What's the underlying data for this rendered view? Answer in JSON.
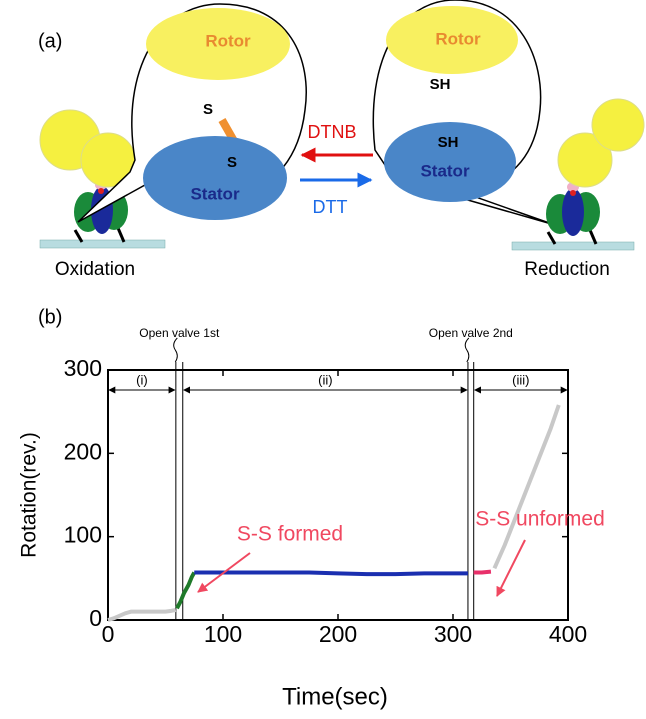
{
  "panel_a": {
    "label": "(a)",
    "left_bubble": {
      "rotor": "Rotor",
      "rotor_thiol": "S",
      "stator_thiol": "S",
      "stator": "Stator"
    },
    "right_bubble": {
      "rotor": "Rotor",
      "rotor_thiol": "SH",
      "stator_thiol": "SH",
      "stator": "Stator"
    },
    "reagents": {
      "forward": "DTNB",
      "backward": "DTT"
    },
    "states": {
      "left": "Oxidation",
      "right": "Reduction"
    }
  },
  "chart_data": {
    "type": "line",
    "panel_label": "(b)",
    "x_label": "Time(sec)",
    "y_label": "Rotation(rev.)",
    "xlim": [
      0,
      400
    ],
    "ylim": [
      0,
      300
    ],
    "xticks": [
      0,
      100,
      200,
      300,
      400
    ],
    "yticks": [
      0,
      100,
      200,
      300
    ],
    "series": [
      {
        "color": "#c8c8c8",
        "x": [
          0,
          5,
          10,
          15,
          20,
          30,
          40,
          50,
          55,
          59
        ],
        "values": [
          0,
          2,
          5,
          8,
          10,
          10,
          10,
          10,
          11,
          12
        ]
      },
      {
        "color": "#1f7a2a",
        "x": [
          60,
          63,
          66,
          70,
          73,
          75
        ],
        "values": [
          14,
          22,
          32,
          42,
          52,
          57
        ]
      },
      {
        "color": "#1a2fb0",
        "x": [
          75,
          100,
          125,
          150,
          175,
          200,
          225,
          250,
          275,
          300,
          313
        ],
        "values": [
          57,
          57,
          57,
          57,
          57,
          56,
          55,
          55,
          56,
          56,
          56
        ]
      },
      {
        "color": "#e8306a",
        "x": [
          318,
          325,
          333
        ],
        "values": [
          57,
          57,
          58
        ]
      },
      {
        "color": "#c8c8c8",
        "x": [
          336,
          345,
          355,
          365,
          375,
          385,
          392
        ],
        "values": [
          62,
          90,
          125,
          160,
          195,
          230,
          258
        ]
      }
    ],
    "valves": [
      {
        "label": "Open valve 1st",
        "x": [
          59,
          65
        ]
      },
      {
        "label": "Open valve 2nd",
        "x": [
          313,
          318
        ]
      }
    ],
    "phases": [
      {
        "label": "(i)",
        "x": [
          0,
          59
        ]
      },
      {
        "label": "(ii)",
        "x": [
          65,
          313
        ]
      },
      {
        "label": "(iii)",
        "x": [
          318,
          400
        ]
      }
    ],
    "annotations": [
      {
        "text": "S-S formed",
        "color": "#f04860"
      },
      {
        "text": "S-S unformed",
        "color": "#f04860"
      }
    ]
  }
}
